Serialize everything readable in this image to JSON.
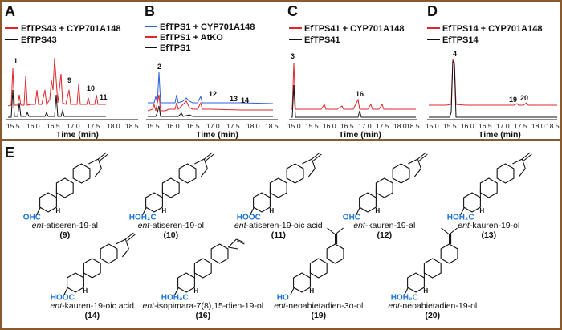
{
  "panels": {
    "A": {
      "label": "A",
      "legend": [
        "EfTPS43 + CYP701A148",
        "EfTPS43"
      ],
      "peaks": [
        "1",
        "9",
        "10",
        "11"
      ],
      "ticks": [
        "15.5",
        "16.0",
        "16.5",
        "17.0",
        "17.5",
        "18.0",
        "18.5"
      ],
      "xlabel": "Time (min)"
    },
    "B": {
      "label": "B",
      "legend": [
        "EfTPS1 + CYP701A148",
        "EfTPS1 + AtKO",
        "EfTPS1"
      ],
      "peaks": [
        "2",
        "12",
        "13",
        "14"
      ],
      "ticks": [
        "15.5",
        "16.0",
        "16.5",
        "17.0",
        "17.5",
        "18.0",
        "18.5"
      ],
      "xlabel": "Time (min)"
    },
    "C": {
      "label": "C",
      "legend": [
        "EfTPS41 + CYP701A148",
        "EfTPS41"
      ],
      "peaks": [
        "3",
        "16"
      ],
      "ticks": [
        "15.0",
        "15.5",
        "16.0",
        "16.5",
        "17.0",
        "17.5",
        "18.0",
        "18.5"
      ],
      "xlabel": "Time (min)"
    },
    "D": {
      "label": "D",
      "legend": [
        "EfTPS14 + CYP701A148",
        "EfTPS14"
      ],
      "peaks": [
        "4",
        "19",
        "20"
      ],
      "ticks": [
        "15.0",
        "15.5",
        "16.0",
        "16.5",
        "17.0",
        "17.5",
        "18.0",
        "18.5"
      ],
      "xlabel": "Time (min)"
    }
  },
  "panelE": {
    "label": "E",
    "compounds": [
      {
        "prefix": "ent",
        "name": "-atiseren-19-al",
        "num": "9",
        "group": "OHC"
      },
      {
        "prefix": "ent",
        "name": "-atiseren-19-ol",
        "num": "10",
        "group": "HOH₂C"
      },
      {
        "prefix": "ent",
        "name": "-atiseren-19-oic acid",
        "num": "11",
        "group": "HOOC"
      },
      {
        "prefix": "ent",
        "name": "-kauren-19-al",
        "num": "12",
        "group": "OHC"
      },
      {
        "prefix": "ent",
        "name": "-kauren-19-ol",
        "num": "13",
        "group": "HOH₂C"
      },
      {
        "prefix": "ent",
        "name": "-kauren-19-oic acid",
        "num": "14",
        "group": "HOOC"
      },
      {
        "prefix": "ent",
        "name": "-isopimara-7(8),15-dien-19-ol",
        "num": "16",
        "group": "HOH₂C"
      },
      {
        "prefix": "ent",
        "name": "-neoabietadien-3α-ol",
        "num": "19",
        "group": "HO"
      },
      {
        "prefix": "ent",
        "name": "-neoabietadien-19-ol",
        "num": "20",
        "group": "HOH₂C"
      }
    ],
    "atom_labels": {
      "H": "H"
    }
  },
  "colors": {
    "red": "#e0262a",
    "black": "#111111",
    "blue": "#2b5fe0",
    "frame": "#8a5a2b",
    "group": "#1a73d9"
  }
}
